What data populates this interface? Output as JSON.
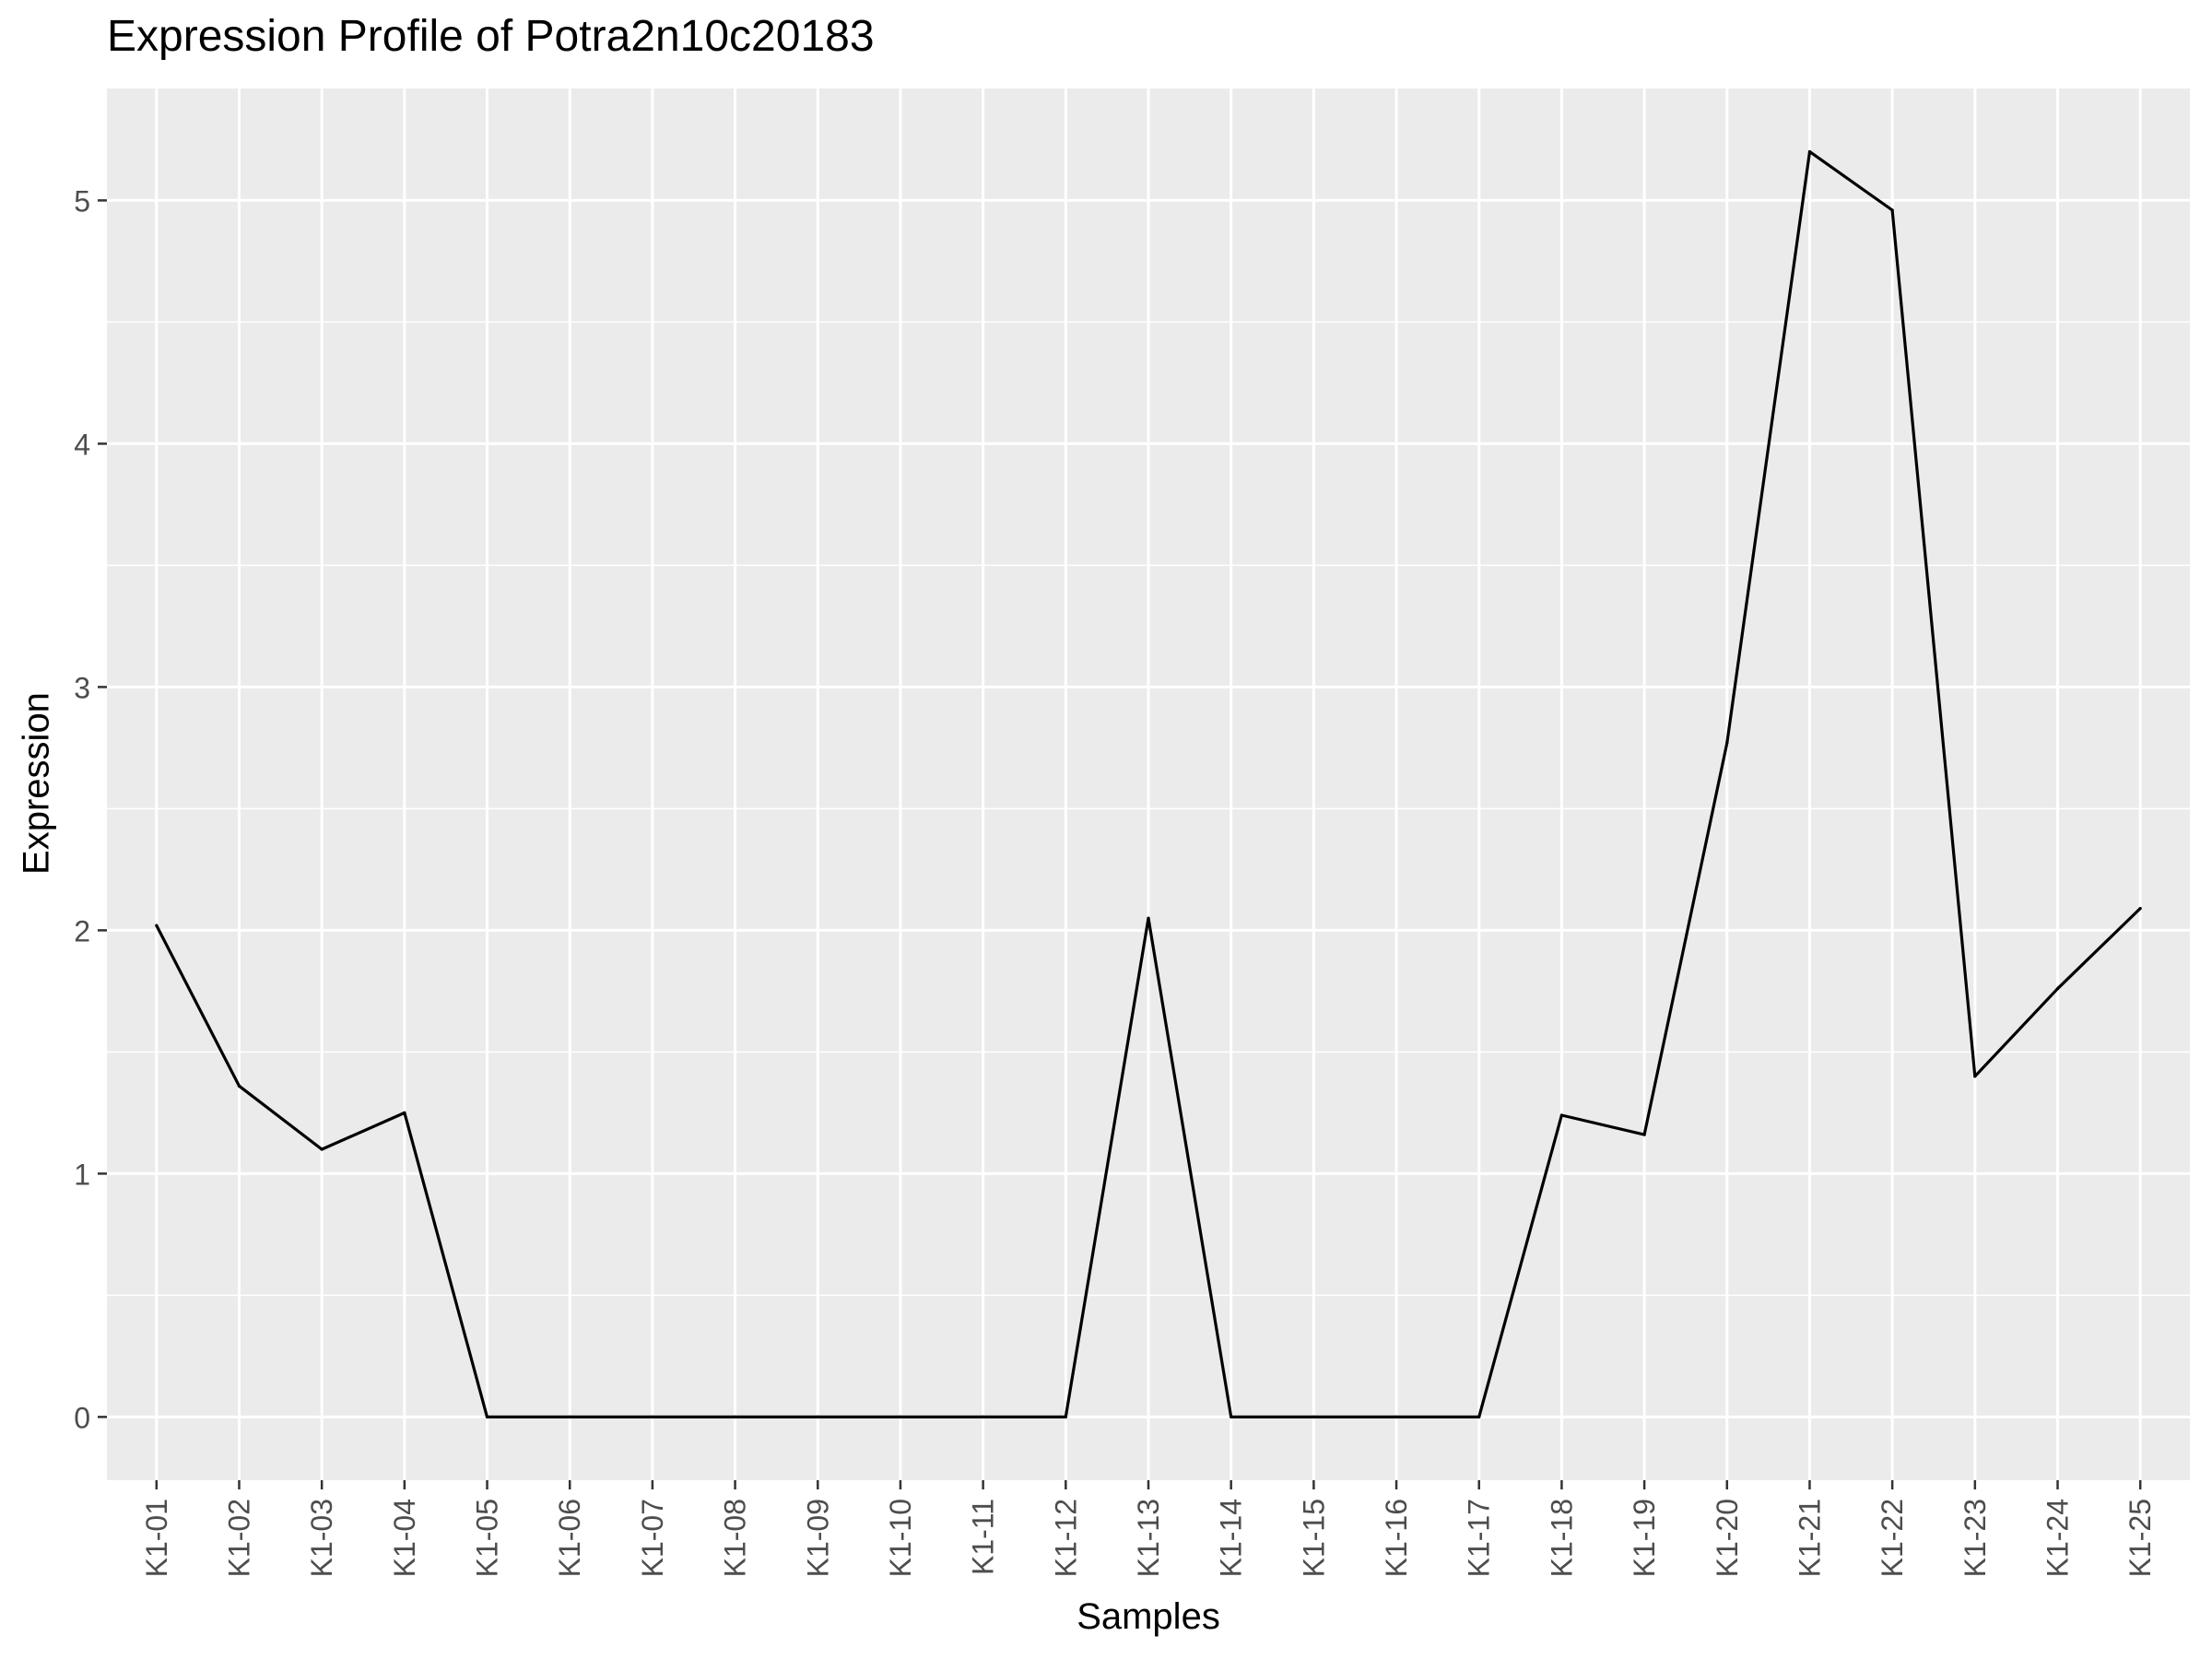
{
  "chart_data": {
    "type": "line",
    "title": "Expression Profile of Potra2n10c20183",
    "xlabel": "Samples",
    "ylabel": "Expression",
    "categories": [
      "K1-01",
      "K1-02",
      "K1-03",
      "K1-04",
      "K1-05",
      "K1-06",
      "K1-07",
      "K1-08",
      "K1-09",
      "K1-10",
      "K1-11",
      "K1-12",
      "K1-13",
      "K1-14",
      "K1-15",
      "K1-16",
      "K1-17",
      "K1-18",
      "K1-19",
      "K1-20",
      "K1-21",
      "K1-22",
      "K1-23",
      "K1-24",
      "K1-25"
    ],
    "series": [
      {
        "values": [
          2.02,
          1.36,
          1.1,
          1.25,
          0,
          0,
          0,
          0,
          0,
          0,
          0,
          0,
          2.05,
          0,
          0,
          0,
          0,
          1.24,
          1.16,
          2.77,
          5.2,
          4.96,
          1.4,
          1.76,
          2.09
        ]
      }
    ],
    "yticks": [
      0,
      1,
      2,
      3,
      4,
      5
    ],
    "ylim": [
      -0.26,
      5.46
    ],
    "grid": true,
    "background": "#EBEBEB",
    "gridline_color": "#FFFFFF",
    "line_color": "#000000",
    "tick_color": "#4D4D4D"
  }
}
